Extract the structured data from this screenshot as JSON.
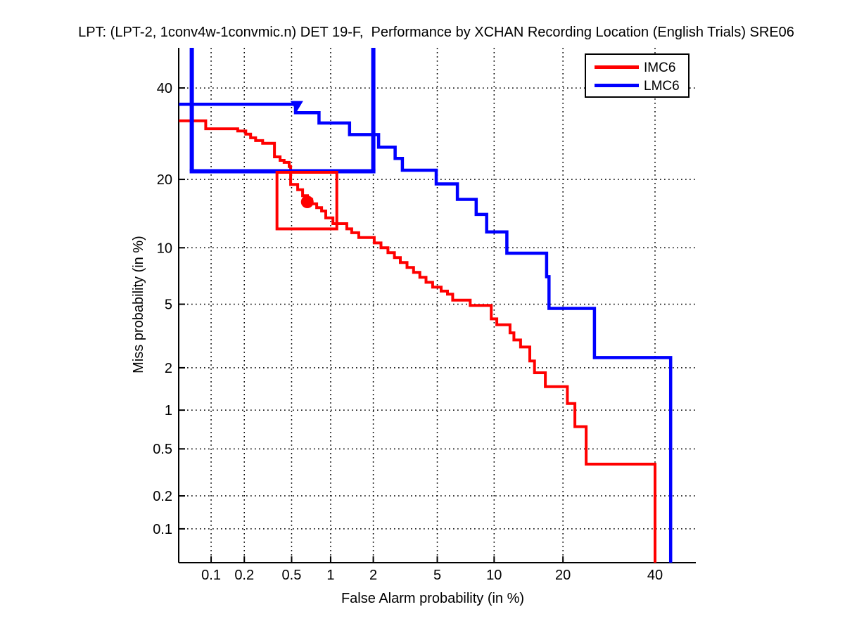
{
  "title": "LPT: (LPT-2, 1conv4w-1convmic.n) DET 19-F,  Performance by XCHAN Recording Location (English Trials) SRE06",
  "axes": {
    "xlabel": "False Alarm probability (in %)",
    "ylabel": "Miss probability (in %)",
    "scale": "probit-probit (DET)",
    "x_ticks": [
      0.1,
      0.2,
      0.5,
      1,
      2,
      5,
      10,
      20,
      40
    ],
    "x_tick_labels": [
      "0.1",
      "0.2",
      "0.5",
      "1",
      "2",
      "5",
      "10",
      "20",
      "40"
    ],
    "y_ticks": [
      0.1,
      0.2,
      0.5,
      1,
      2,
      5,
      10,
      20,
      40
    ],
    "y_tick_labels": [
      "0.1",
      "0.2",
      "0.5",
      "1",
      "2",
      "5",
      "10",
      "20",
      "40"
    ],
    "x_range_pct": [
      0.0488,
      50.3
    ],
    "y_range_pct": [
      0.047,
      50.2
    ],
    "grid": "dotted"
  },
  "legend": {
    "entries": [
      {
        "label": "IMC6",
        "color": "#ff0000"
      },
      {
        "label": "LMC6",
        "color": "#0000ff"
      }
    ]
  },
  "chart_data": {
    "type": "line",
    "subtype": "DET step curves, probit scale on both axes, units percent",
    "title": "LPT: (LPT-2, 1conv4w-1convmic.n) DET 19-F,  Performance by XCHAN Recording Location (English Trials) SRE06",
    "xlabel": "False Alarm probability (in %)",
    "ylabel": "Miss probability (in %)",
    "xlim": [
      0.0488,
      50.3
    ],
    "ylim": [
      0.047,
      50.2
    ],
    "series": [
      {
        "name": "IMC6",
        "color": "#ff0000",
        "points": [
          [
            0.049,
            32.1
          ],
          [
            0.089,
            32.1
          ],
          [
            0.089,
            30.3
          ],
          [
            0.175,
            30.3
          ],
          [
            0.175,
            29.8
          ],
          [
            0.206,
            29.8
          ],
          [
            0.206,
            29.1
          ],
          [
            0.227,
            29.1
          ],
          [
            0.227,
            28.3
          ],
          [
            0.251,
            28.3
          ],
          [
            0.251,
            27.7
          ],
          [
            0.288,
            27.7
          ],
          [
            0.288,
            27.1
          ],
          [
            0.362,
            27.1
          ],
          [
            0.362,
            24.3
          ],
          [
            0.403,
            24.3
          ],
          [
            0.403,
            23.6
          ],
          [
            0.435,
            23.6
          ],
          [
            0.435,
            23.2
          ],
          [
            0.478,
            23.2
          ],
          [
            0.478,
            22.4
          ],
          [
            0.491,
            22.4
          ],
          [
            0.491,
            19.1
          ],
          [
            0.559,
            19.1
          ],
          [
            0.559,
            18.2
          ],
          [
            0.611,
            18.2
          ],
          [
            0.611,
            17.2
          ],
          [
            0.667,
            17.2
          ],
          [
            0.667,
            16.6
          ],
          [
            0.72,
            16.6
          ],
          [
            0.72,
            15.9
          ],
          [
            0.785,
            15.9
          ],
          [
            0.785,
            15.3
          ],
          [
            0.856,
            15.3
          ],
          [
            0.856,
            14.8
          ],
          [
            0.92,
            14.8
          ],
          [
            0.92,
            13.8
          ],
          [
            1.04,
            13.8
          ],
          [
            1.04,
            13.0
          ],
          [
            1.31,
            13.0
          ],
          [
            1.31,
            12.3
          ],
          [
            1.42,
            12.3
          ],
          [
            1.42,
            11.8
          ],
          [
            1.59,
            11.8
          ],
          [
            1.59,
            11.2
          ],
          [
            2.03,
            11.2
          ],
          [
            2.03,
            10.56
          ],
          [
            2.25,
            10.56
          ],
          [
            2.25,
            10.0
          ],
          [
            2.5,
            10.0
          ],
          [
            2.5,
            9.45
          ],
          [
            2.75,
            9.45
          ],
          [
            2.75,
            8.93
          ],
          [
            3.0,
            8.93
          ],
          [
            3.0,
            8.43
          ],
          [
            3.3,
            8.43
          ],
          [
            3.3,
            7.96
          ],
          [
            3.62,
            7.96
          ],
          [
            3.62,
            7.49
          ],
          [
            3.95,
            7.49
          ],
          [
            3.95,
            7.06
          ],
          [
            4.3,
            7.06
          ],
          [
            4.3,
            6.63
          ],
          [
            4.7,
            6.63
          ],
          [
            4.7,
            6.24
          ],
          [
            5.26,
            6.24
          ],
          [
            5.26,
            5.93
          ],
          [
            5.71,
            5.93
          ],
          [
            5.71,
            5.7
          ],
          [
            6.1,
            5.7
          ],
          [
            6.1,
            5.28
          ],
          [
            7.57,
            5.28
          ],
          [
            7.57,
            4.92
          ],
          [
            9.68,
            4.92
          ],
          [
            9.68,
            4.1
          ],
          [
            10.3,
            4.1
          ],
          [
            10.3,
            3.78
          ],
          [
            11.9,
            3.78
          ],
          [
            11.9,
            3.37
          ],
          [
            12.4,
            3.37
          ],
          [
            12.4,
            3.04
          ],
          [
            13.3,
            3.04
          ],
          [
            13.3,
            2.74
          ],
          [
            14.6,
            2.74
          ],
          [
            14.6,
            2.22
          ],
          [
            15.3,
            2.22
          ],
          [
            15.3,
            1.85
          ],
          [
            17.0,
            1.85
          ],
          [
            17.0,
            1.48
          ],
          [
            20.8,
            1.48
          ],
          [
            20.8,
            1.12
          ],
          [
            22.2,
            1.12
          ],
          [
            22.2,
            0.75
          ],
          [
            24.4,
            0.75
          ],
          [
            24.4,
            0.375
          ],
          [
            40.0,
            0.375
          ],
          [
            40.0,
            0.047
          ]
        ]
      },
      {
        "name": "LMC6",
        "color": "#0000ff",
        "points": [
          [
            0.049,
            36.0
          ],
          [
            0.537,
            36.0
          ],
          [
            0.537,
            34.0
          ],
          [
            0.818,
            34.0
          ],
          [
            0.818,
            31.6
          ],
          [
            1.37,
            31.6
          ],
          [
            1.37,
            29.0
          ],
          [
            2.17,
            29.0
          ],
          [
            2.17,
            26.3
          ],
          [
            2.78,
            26.3
          ],
          [
            2.78,
            24.0
          ],
          [
            3.09,
            24.0
          ],
          [
            3.09,
            21.7
          ],
          [
            4.93,
            21.7
          ],
          [
            4.93,
            19.2
          ],
          [
            6.47,
            19.2
          ],
          [
            6.47,
            16.6
          ],
          [
            8.13,
            16.6
          ],
          [
            8.13,
            14.3
          ],
          [
            9.19,
            14.3
          ],
          [
            9.19,
            11.9
          ],
          [
            11.5,
            11.9
          ],
          [
            11.5,
            9.4
          ],
          [
            17.2,
            9.4
          ],
          [
            17.2,
            7.11
          ],
          [
            17.6,
            7.11
          ],
          [
            17.6,
            4.73
          ],
          [
            26.1,
            4.73
          ],
          [
            26.1,
            2.34
          ],
          [
            43.9,
            2.34
          ],
          [
            43.9,
            0.047
          ]
        ]
      }
    ],
    "annotations": {
      "red_box": {
        "fa": [
          0.38,
          1.11
        ],
        "miss": [
          12.3,
          21.3
        ],
        "color": "#ff0000"
      },
      "red_dot_marker": {
        "fa": 0.665,
        "miss": 16.2,
        "color": "#ff0000"
      },
      "blue_box": {
        "fa": [
          0.0655,
          2.0
        ],
        "miss_bottom": 21.5,
        "miss_top": 50.2,
        "color": "#0000ff"
      },
      "blue_triangle_marker": {
        "fa": 0.55,
        "miss": 35.6,
        "color": "#0000ff"
      }
    }
  }
}
